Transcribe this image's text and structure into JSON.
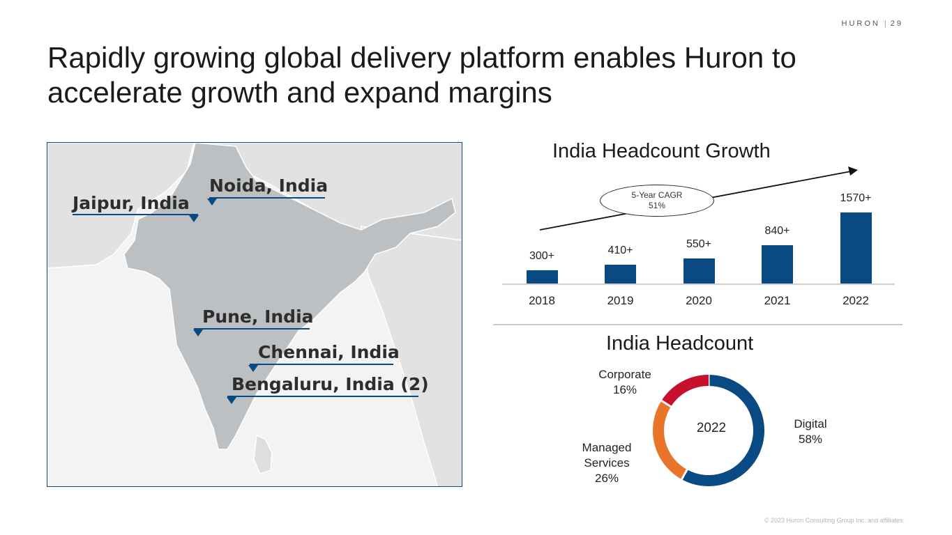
{
  "header": {
    "brand": "HURON",
    "page_number": "29"
  },
  "title": "Rapidly growing global delivery platform enables Huron to accelerate growth and expand margins",
  "map": {
    "locations": [
      {
        "label": "Jaipur, India"
      },
      {
        "label": "Noida, India"
      },
      {
        "label": "Pune, India"
      },
      {
        "label": "Chennai, India"
      },
      {
        "label": "Bengaluru, India (2)"
      }
    ],
    "colors": {
      "land": "#bdc1c4",
      "neighbors": "#e3e3e3",
      "sea": "#f4f4f4",
      "pin": "#0a4a82"
    }
  },
  "chart_data": [
    {
      "type": "bar",
      "title": "India Headcount Growth",
      "categories": [
        "2018",
        "2019",
        "2020",
        "2021",
        "2022"
      ],
      "values": [
        300,
        410,
        550,
        840,
        1570
      ],
      "value_labels": [
        "300+",
        "410+",
        "550+",
        "840+",
        "1570+"
      ],
      "annotation": {
        "line1": "5-Year CAGR",
        "line2": "51%"
      },
      "color": "#0a4a82",
      "ylim": [
        0,
        1570
      ]
    },
    {
      "type": "pie",
      "title": "India Headcount",
      "center_label": "2022",
      "slices": [
        {
          "name": "Digital",
          "value": 58,
          "label": "58%",
          "color": "#0a4a82"
        },
        {
          "name": "Managed Services",
          "value": 26,
          "label": "26%",
          "color": "#e8752a"
        },
        {
          "name": "Corporate",
          "value": 16,
          "label": "16%",
          "color": "#c8102e"
        }
      ]
    }
  ],
  "footer": {
    "copyright": "© 2023 Huron Consulting Group Inc. and affiliates."
  }
}
